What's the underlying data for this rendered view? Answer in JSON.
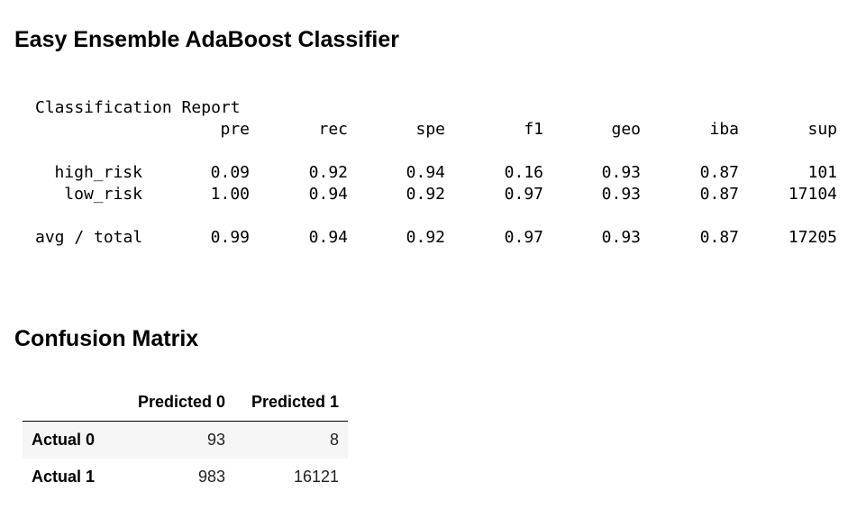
{
  "title": "Easy Ensemble AdaBoost Classifier",
  "report": {
    "caption": "Classification Report",
    "columns": [
      "pre",
      "rec",
      "spe",
      "f1",
      "geo",
      "iba",
      "sup"
    ],
    "rows": [
      {
        "label": "high_risk",
        "values": [
          "0.09",
          "0.92",
          "0.94",
          "0.16",
          "0.93",
          "0.87",
          "101"
        ]
      },
      {
        "label": "low_risk",
        "values": [
          "1.00",
          "0.94",
          "0.92",
          "0.97",
          "0.93",
          "0.87",
          "17104"
        ]
      }
    ],
    "total": {
      "label": "avg / total",
      "values": [
        "0.99",
        "0.94",
        "0.92",
        "0.97",
        "0.93",
        "0.87",
        "17205"
      ]
    }
  },
  "confusion": {
    "title": "Confusion Matrix",
    "columns": [
      "Predicted 0",
      "Predicted 1"
    ],
    "rows": [
      {
        "label": "Actual 0",
        "values": [
          "93",
          "8"
        ]
      },
      {
        "label": "Actual 1",
        "values": [
          "983",
          "16121"
        ]
      }
    ]
  }
}
